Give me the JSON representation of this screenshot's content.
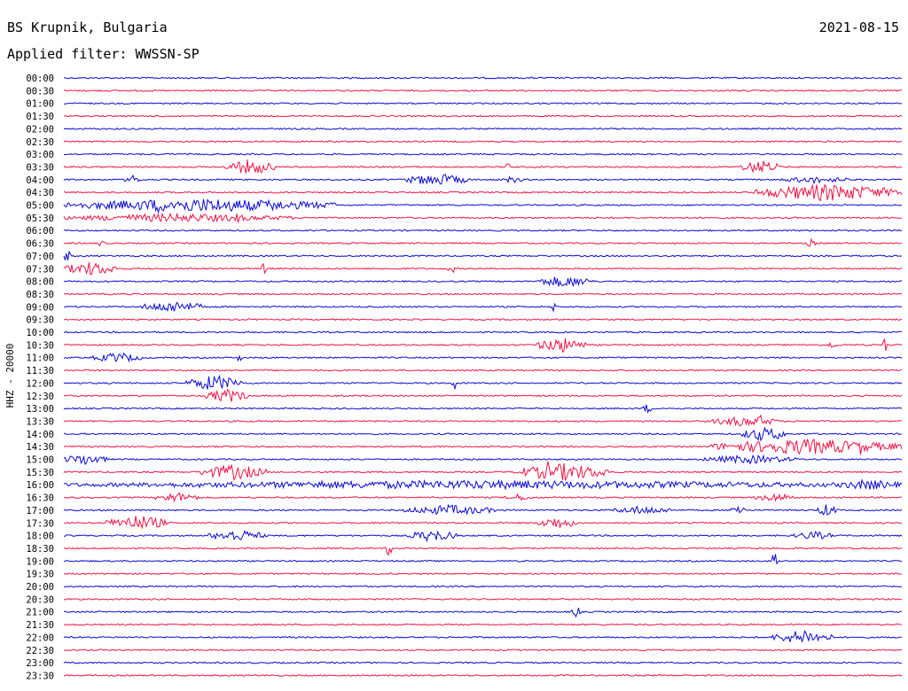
{
  "header": {
    "station": "BS Krupnik, Bulgaria",
    "date": "2021-08-15",
    "filter": "Applied filter: WWSSN-SP"
  },
  "colors": {
    "blue": "#0a0ad2",
    "red": "#ee1446",
    "text": "#000000"
  },
  "chart_data": {
    "type": "line",
    "title": "BS Krupnik, Bulgaria",
    "ylabel": "HHZ - 20000",
    "xlabel": "",
    "traces": [
      {
        "label": "00:00",
        "color": "blue"
      },
      {
        "label": "00:30",
        "color": "red"
      },
      {
        "label": "01:00",
        "color": "blue"
      },
      {
        "label": "01:30",
        "color": "red"
      },
      {
        "label": "02:00",
        "color": "blue"
      },
      {
        "label": "02:30",
        "color": "red"
      },
      {
        "label": "03:00",
        "color": "blue"
      },
      {
        "label": "03:30",
        "color": "red"
      },
      {
        "label": "04:00",
        "color": "blue"
      },
      {
        "label": "04:30",
        "color": "red"
      },
      {
        "label": "05:00",
        "color": "blue"
      },
      {
        "label": "05:30",
        "color": "red"
      },
      {
        "label": "06:00",
        "color": "blue"
      },
      {
        "label": "06:30",
        "color": "red"
      },
      {
        "label": "07:00",
        "color": "blue"
      },
      {
        "label": "07:30",
        "color": "red"
      },
      {
        "label": "08:00",
        "color": "blue"
      },
      {
        "label": "08:30",
        "color": "red"
      },
      {
        "label": "09:00",
        "color": "blue"
      },
      {
        "label": "09:30",
        "color": "red"
      },
      {
        "label": "10:00",
        "color": "blue"
      },
      {
        "label": "10:30",
        "color": "red"
      },
      {
        "label": "11:00",
        "color": "blue"
      },
      {
        "label": "11:30",
        "color": "red"
      },
      {
        "label": "12:00",
        "color": "blue"
      },
      {
        "label": "12:30",
        "color": "red"
      },
      {
        "label": "13:00",
        "color": "blue"
      },
      {
        "label": "13:30",
        "color": "red"
      },
      {
        "label": "14:00",
        "color": "blue"
      },
      {
        "label": "14:30",
        "color": "red"
      },
      {
        "label": "15:00",
        "color": "blue"
      },
      {
        "label": "15:30",
        "color": "red"
      },
      {
        "label": "16:00",
        "color": "blue"
      },
      {
        "label": "16:30",
        "color": "red"
      },
      {
        "label": "17:00",
        "color": "blue"
      },
      {
        "label": "17:30",
        "color": "red"
      },
      {
        "label": "18:00",
        "color": "blue"
      },
      {
        "label": "18:30",
        "color": "red"
      },
      {
        "label": "19:00",
        "color": "blue"
      },
      {
        "label": "19:30",
        "color": "red"
      },
      {
        "label": "20:00",
        "color": "blue"
      },
      {
        "label": "20:30",
        "color": "red"
      },
      {
        "label": "21:00",
        "color": "blue"
      },
      {
        "label": "21:30",
        "color": "red"
      },
      {
        "label": "22:00",
        "color": "blue"
      },
      {
        "label": "22:30",
        "color": "red"
      },
      {
        "label": "23:00",
        "color": "blue"
      },
      {
        "label": "23:30",
        "color": "red"
      }
    ]
  }
}
